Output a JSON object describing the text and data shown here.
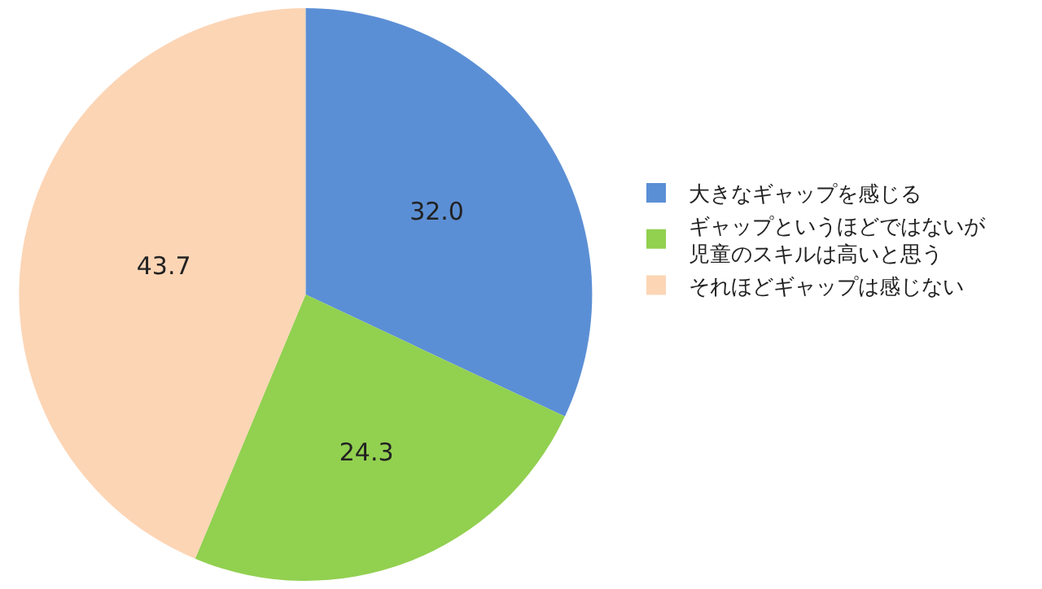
{
  "chart_data": {
    "type": "pie",
    "categories": [
      "大きなギャップを感じる",
      "ギャップというほどではないが児童のスキルは高いと思う",
      "それほどギャップは感じない"
    ],
    "values": [
      32.0,
      24.3,
      43.7
    ],
    "value_labels": [
      "32.0",
      "24.3",
      "43.7"
    ],
    "colors": [
      "#5b8fd5",
      "#92d050",
      "#fcd5b5"
    ],
    "legend": "right"
  }
}
